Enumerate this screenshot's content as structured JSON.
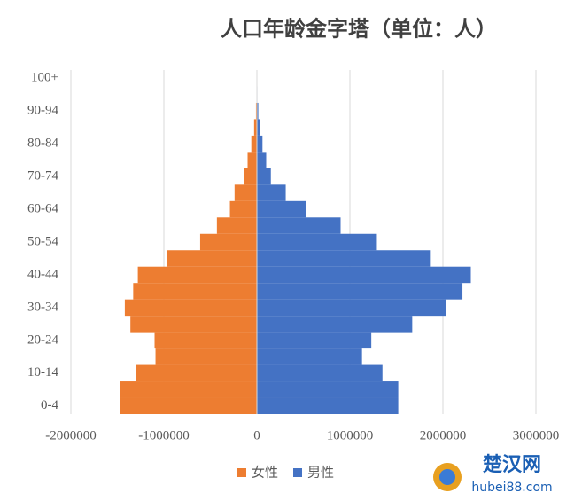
{
  "chart_data": {
    "type": "pyramid",
    "title": "人口年龄金字塔（单位：人）",
    "categories": [
      "0-4",
      null,
      "10-14",
      null,
      "20-24",
      null,
      "30-34",
      null,
      "40-44",
      null,
      "50-54",
      null,
      "60-64",
      null,
      "70-74",
      null,
      "80-84",
      null,
      "90-94",
      null,
      "100+"
    ],
    "series": [
      {
        "name": "女性",
        "color": "#ed7d31",
        "values": [
          -1470000,
          -1470000,
          -1300000,
          -1090000,
          -1100000,
          -1360000,
          -1420000,
          -1330000,
          -1280000,
          -970000,
          -610000,
          -430000,
          -290000,
          -240000,
          -140000,
          -100000,
          -60000,
          -30000,
          -10000,
          -3000,
          -1000
        ]
      },
      {
        "name": "男性",
        "color": "#4472c4",
        "values": [
          1520000,
          1520000,
          1350000,
          1130000,
          1230000,
          1670000,
          2030000,
          2210000,
          2300000,
          1870000,
          1290000,
          900000,
          530000,
          310000,
          150000,
          100000,
          60000,
          30000,
          15000,
          5000,
          1000
        ]
      }
    ],
    "xlim": [
      -2000000,
      3000000
    ],
    "xticks": [
      -2000000,
      -1000000,
      0,
      1000000,
      2000000,
      3000000
    ],
    "grid": true,
    "legend": "bottom"
  },
  "watermark": {
    "name": "楚汉网",
    "url": "hubei88.com"
  }
}
